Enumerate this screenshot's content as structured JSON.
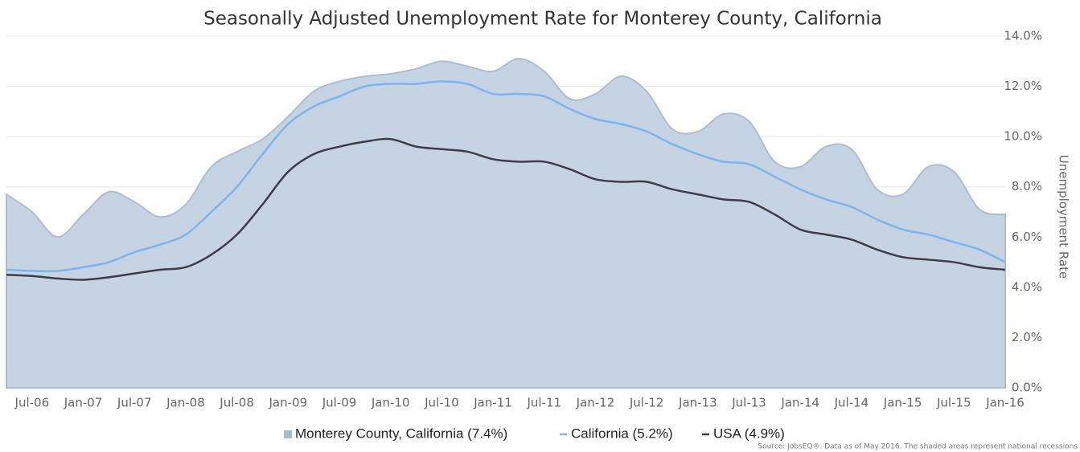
{
  "chart_data": {
    "type": "line",
    "title": "Seasonally Adjusted Unemployment Rate for Monterey County, California",
    "y_label": "Unemployment Rate",
    "source": "Source: JobsEQ®. Data as of May 2016. The shaded areas represent national recessions",
    "categories": [
      null,
      "Jul-06",
      null,
      "Jan-07",
      null,
      "Jul-07",
      null,
      "Jan-08",
      null,
      "Jul-08",
      null,
      "Jan-09",
      null,
      "Jul-09",
      null,
      "Jan-10",
      null,
      "Jul-10",
      null,
      "Jan-11",
      null,
      "Jul-11",
      null,
      "Jan-12",
      null,
      "Jul-12",
      null,
      "Jan-13",
      null,
      "Jul-13",
      null,
      "Jan-14",
      null,
      "Jul-14",
      null,
      "Jan-15",
      null,
      "Jul-15",
      null,
      "Jan-16"
    ],
    "series": [
      {
        "name": "Monterey County, California (7.4%)",
        "color": "#c6d3e3",
        "area": true,
        "values": [
          7.7,
          7.0,
          6.0,
          6.9,
          7.8,
          7.4,
          6.8,
          7.3,
          8.8,
          9.4,
          9.9,
          10.8,
          11.8,
          12.2,
          12.4,
          12.5,
          12.7,
          13.0,
          12.8,
          12.6,
          13.1,
          12.6,
          11.5,
          11.7,
          12.4,
          11.8,
          10.3,
          10.2,
          10.9,
          10.6,
          9.0,
          8.8,
          9.6,
          9.5,
          7.9,
          7.7,
          8.8,
          8.6,
          7.1,
          6.9
        ]
      },
      {
        "name": "California (5.2%)",
        "color": "#7cb5ec",
        "values": [
          4.7,
          4.65,
          4.65,
          4.8,
          5.0,
          5.4,
          5.7,
          6.1,
          7.0,
          8.0,
          9.3,
          10.5,
          11.2,
          11.6,
          12.0,
          12.1,
          12.1,
          12.2,
          12.1,
          11.7,
          11.7,
          11.6,
          11.1,
          10.7,
          10.5,
          10.2,
          9.7,
          9.3,
          9.0,
          8.9,
          8.4,
          7.9,
          7.5,
          7.2,
          6.7,
          6.3,
          6.1,
          5.8,
          5.5,
          5.0
        ]
      },
      {
        "name": "USA (4.9%)",
        "color": "#3d3d48",
        "values": [
          4.5,
          4.45,
          4.35,
          4.3,
          4.4,
          4.55,
          4.7,
          4.8,
          5.3,
          6.1,
          7.3,
          8.6,
          9.3,
          9.6,
          9.8,
          9.9,
          9.6,
          9.5,
          9.4,
          9.1,
          9.0,
          9.0,
          8.7,
          8.3,
          8.2,
          8.2,
          7.9,
          7.7,
          7.5,
          7.4,
          6.9,
          6.3,
          6.1,
          5.9,
          5.5,
          5.2,
          5.1,
          5.0,
          4.8,
          4.7
        ]
      }
    ],
    "ylim": [
      0,
      14
    ],
    "yticks": [
      {
        "value": 0,
        "label": "0.0%"
      },
      {
        "value": 2,
        "label": "2.0%"
      },
      {
        "value": 4,
        "label": "4.0%"
      },
      {
        "value": 6,
        "label": "6.0%"
      },
      {
        "value": 8,
        "label": "8.0%"
      },
      {
        "value": 10,
        "label": "10.0%"
      },
      {
        "value": 12,
        "label": "12.0%"
      },
      {
        "value": 14,
        "label": "14.0%"
      }
    ],
    "grid": true
  }
}
